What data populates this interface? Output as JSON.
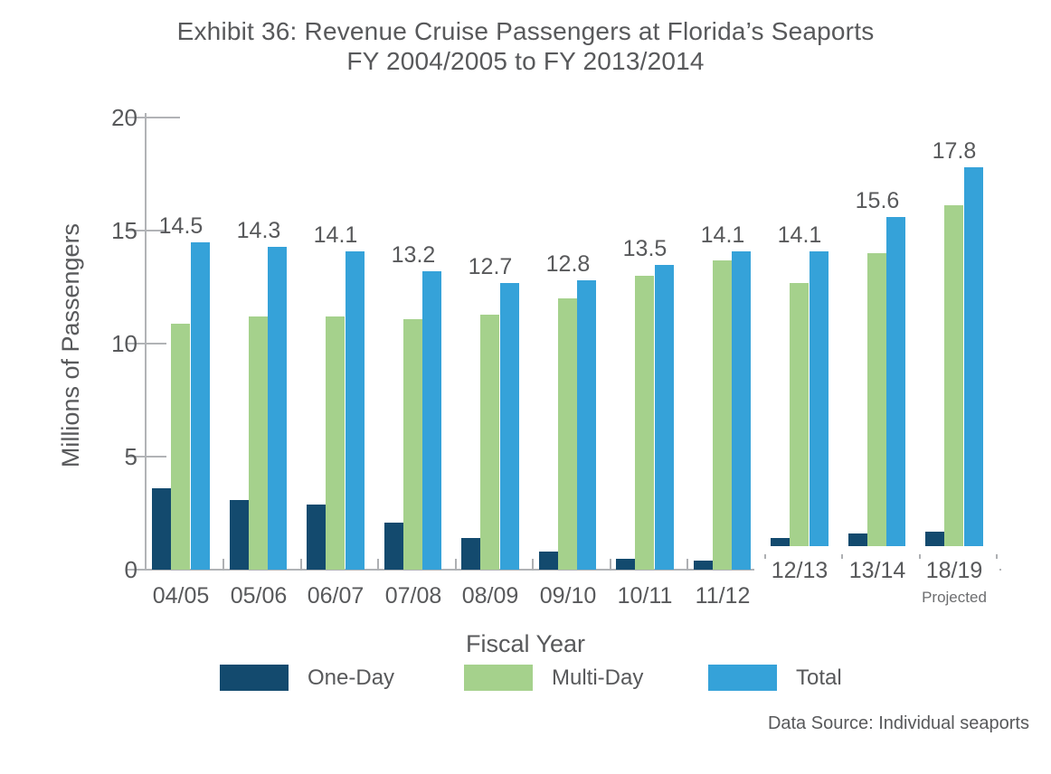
{
  "title": {
    "line1": "Exhibit 36: Revenue Cruise Passengers at Florida’s Seaports",
    "line2": "FY 2004/2005 to FY 2013/2014"
  },
  "y_axis": {
    "label": "Millions of Passengers",
    "ticks": [
      0,
      5,
      10,
      15,
      20
    ]
  },
  "x_axis": {
    "label": "Fiscal Year"
  },
  "legend": {
    "items": [
      {
        "label": "One-Day",
        "color": "#134a6e"
      },
      {
        "label": "Multi-Day",
        "color": "#a5d18c"
      },
      {
        "label": "Total",
        "color": "#35a2d9"
      }
    ]
  },
  "footer": {
    "data_source": "Data Source:  Individual seaports"
  },
  "chart_data": {
    "type": "bar",
    "title": "Exhibit 36: Revenue Cruise Passengers at Florida’s Seaports FY 2004/2005 to FY 2013/2014",
    "categories": [
      "04/05",
      "05/06",
      "06/07",
      "07/08",
      "08/09",
      "09/10",
      "10/11",
      "11/12",
      "12/13",
      "13/14",
      "18/19"
    ],
    "series": [
      {
        "name": "One-Day",
        "color": "#134a6e",
        "values": [
          3.6,
          3.1,
          2.9,
          2.1,
          1.4,
          0.8,
          0.5,
          0.4,
          1.4,
          1.6,
          1.7
        ]
      },
      {
        "name": "Multi-Day",
        "color": "#a5d18c",
        "values": [
          10.9,
          11.2,
          11.2,
          11.1,
          11.3,
          12.0,
          13.0,
          13.7,
          12.7,
          14.0,
          16.1
        ]
      },
      {
        "name": "Total",
        "color": "#35a2d9",
        "values": [
          14.5,
          14.3,
          14.1,
          13.2,
          12.7,
          12.8,
          13.5,
          14.1,
          14.1,
          15.6,
          17.8
        ]
      }
    ],
    "data_labels": [
      "14.5",
      "14.3",
      "14.1",
      "13.2",
      "12.7",
      "12.8",
      "13.5",
      "14.1",
      "14.1",
      "15.6",
      "17.8"
    ],
    "annotations": [
      {
        "category": "18/19",
        "text": "Projected"
      }
    ],
    "xlabel": "Fiscal Year",
    "ylabel": "Millions of Passengers",
    "ylim": [
      0,
      20
    ],
    "y_tick_step": 5,
    "legend_position": "bottom",
    "grid": "tick-stubs-only",
    "text_color": "#58595b",
    "axis_color": "#b1b3b6"
  }
}
